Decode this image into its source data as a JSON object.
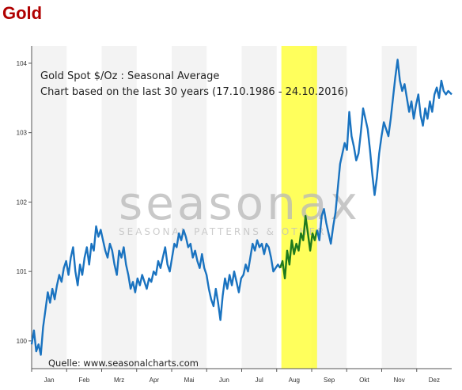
{
  "header": {
    "title": "Gold"
  },
  "colors": {
    "title": "#b00000",
    "line": "#1a73c0",
    "highlight_line": "#1e7a1e",
    "highlight_band": "#ffff33",
    "band_alt": "#f3f3f3"
  },
  "chart_data": {
    "type": "line",
    "title": "Gold Spot   $/Oz : Seasonal Average",
    "subtitle": "Chart based on the last 30 years (17.10.1986 - 24.10.2016)",
    "source": "Quelle: www.seasonalcharts.com",
    "watermark": "seasonax",
    "watermark_sub": "SEASONAL PATTERNS & OTHER",
    "months": [
      "Jan",
      "Feb",
      "Mrz",
      "Apr",
      "Mai",
      "Jun",
      "Jul",
      "Aug",
      "Sep",
      "Okt",
      "Nov",
      "Dez"
    ],
    "y_ticks": [
      100,
      101,
      102,
      103,
      104
    ],
    "ylim": [
      99.6,
      104.25
    ],
    "xlim": [
      0,
      365
    ],
    "highlight_range": [
      217,
      248
    ],
    "grid": "alternating month bands",
    "series": [
      {
        "values": [
          [
            0,
            99.95
          ],
          [
            2,
            100.15
          ],
          [
            4,
            99.85
          ],
          [
            6,
            99.95
          ],
          [
            8,
            99.8
          ],
          [
            10,
            100.2
          ],
          [
            12,
            100.45
          ],
          [
            14,
            100.7
          ],
          [
            16,
            100.55
          ],
          [
            18,
            100.75
          ],
          [
            20,
            100.6
          ],
          [
            22,
            100.8
          ],
          [
            24,
            100.95
          ],
          [
            26,
            100.85
          ],
          [
            28,
            101.05
          ],
          [
            30,
            101.15
          ],
          [
            32,
            100.95
          ],
          [
            34,
            101.2
          ],
          [
            36,
            101.35
          ],
          [
            38,
            101.0
          ],
          [
            40,
            100.8
          ],
          [
            42,
            101.1
          ],
          [
            44,
            100.95
          ],
          [
            46,
            101.2
          ],
          [
            48,
            101.35
          ],
          [
            50,
            101.1
          ],
          [
            52,
            101.4
          ],
          [
            54,
            101.3
          ],
          [
            56,
            101.65
          ],
          [
            58,
            101.5
          ],
          [
            60,
            101.6
          ],
          [
            62,
            101.45
          ],
          [
            64,
            101.3
          ],
          [
            66,
            101.2
          ],
          [
            68,
            101.4
          ],
          [
            70,
            101.3
          ],
          [
            72,
            101.1
          ],
          [
            74,
            100.95
          ],
          [
            76,
            101.3
          ],
          [
            78,
            101.2
          ],
          [
            80,
            101.35
          ],
          [
            82,
            101.1
          ],
          [
            84,
            100.95
          ],
          [
            86,
            100.75
          ],
          [
            88,
            100.85
          ],
          [
            90,
            100.7
          ],
          [
            92,
            100.9
          ],
          [
            94,
            100.8
          ],
          [
            96,
            100.95
          ],
          [
            98,
            100.85
          ],
          [
            100,
            100.75
          ],
          [
            102,
            100.9
          ],
          [
            104,
            100.85
          ],
          [
            106,
            101.0
          ],
          [
            108,
            100.95
          ],
          [
            110,
            101.15
          ],
          [
            112,
            101.05
          ],
          [
            114,
            101.2
          ],
          [
            116,
            101.35
          ],
          [
            118,
            101.1
          ],
          [
            120,
            101.0
          ],
          [
            122,
            101.2
          ],
          [
            124,
            101.4
          ],
          [
            126,
            101.35
          ],
          [
            128,
            101.55
          ],
          [
            130,
            101.45
          ],
          [
            132,
            101.6
          ],
          [
            134,
            101.5
          ],
          [
            136,
            101.35
          ],
          [
            138,
            101.4
          ],
          [
            140,
            101.2
          ],
          [
            142,
            101.3
          ],
          [
            144,
            101.15
          ],
          [
            146,
            101.05
          ],
          [
            148,
            101.25
          ],
          [
            150,
            101.05
          ],
          [
            152,
            100.95
          ],
          [
            154,
            100.75
          ],
          [
            156,
            100.6
          ],
          [
            158,
            100.5
          ],
          [
            160,
            100.75
          ],
          [
            162,
            100.55
          ],
          [
            164,
            100.3
          ],
          [
            166,
            100.65
          ],
          [
            168,
            100.9
          ],
          [
            170,
            100.75
          ],
          [
            172,
            100.95
          ],
          [
            174,
            100.8
          ],
          [
            176,
            101.0
          ],
          [
            178,
            100.85
          ],
          [
            180,
            100.7
          ],
          [
            182,
            100.9
          ],
          [
            184,
            100.95
          ],
          [
            186,
            101.1
          ],
          [
            188,
            101.0
          ],
          [
            190,
            101.2
          ],
          [
            192,
            101.4
          ],
          [
            194,
            101.3
          ],
          [
            196,
            101.45
          ],
          [
            198,
            101.35
          ],
          [
            200,
            101.4
          ],
          [
            202,
            101.25
          ],
          [
            204,
            101.4
          ],
          [
            206,
            101.35
          ],
          [
            208,
            101.2
          ],
          [
            210,
            101.0
          ],
          [
            212,
            101.05
          ],
          [
            214,
            101.1
          ],
          [
            216,
            101.05
          ]
        ]
      },
      {
        "values": [
          [
            216,
            101.05
          ],
          [
            218,
            101.15
          ],
          [
            220,
            100.9
          ],
          [
            222,
            101.3
          ],
          [
            224,
            101.1
          ],
          [
            226,
            101.45
          ],
          [
            228,
            101.25
          ],
          [
            230,
            101.4
          ],
          [
            232,
            101.3
          ],
          [
            234,
            101.55
          ],
          [
            236,
            101.45
          ],
          [
            238,
            101.8
          ],
          [
            240,
            101.55
          ],
          [
            242,
            101.3
          ],
          [
            244,
            101.55
          ],
          [
            246,
            101.45
          ],
          [
            248,
            101.6
          ]
        ]
      },
      {
        "values": [
          [
            248,
            101.6
          ],
          [
            250,
            101.45
          ],
          [
            252,
            101.8
          ],
          [
            254,
            101.9
          ],
          [
            256,
            101.7
          ],
          [
            258,
            101.55
          ],
          [
            260,
            101.4
          ],
          [
            262,
            101.65
          ],
          [
            264,
            101.85
          ],
          [
            266,
            102.2
          ],
          [
            268,
            102.55
          ],
          [
            270,
            102.7
          ],
          [
            272,
            102.85
          ],
          [
            274,
            102.75
          ],
          [
            276,
            103.3
          ],
          [
            278,
            102.95
          ],
          [
            280,
            102.8
          ],
          [
            282,
            102.6
          ],
          [
            284,
            102.7
          ],
          [
            286,
            103.0
          ],
          [
            288,
            103.35
          ],
          [
            290,
            103.2
          ],
          [
            292,
            103.05
          ],
          [
            294,
            102.75
          ],
          [
            296,
            102.4
          ],
          [
            298,
            102.1
          ],
          [
            300,
            102.35
          ],
          [
            302,
            102.7
          ],
          [
            304,
            102.95
          ],
          [
            306,
            103.15
          ],
          [
            308,
            103.05
          ],
          [
            310,
            102.95
          ],
          [
            312,
            103.2
          ],
          [
            314,
            103.5
          ],
          [
            316,
            103.8
          ],
          [
            318,
            104.05
          ],
          [
            320,
            103.75
          ],
          [
            322,
            103.6
          ],
          [
            324,
            103.7
          ],
          [
            326,
            103.5
          ],
          [
            328,
            103.3
          ],
          [
            330,
            103.45
          ],
          [
            332,
            103.2
          ],
          [
            334,
            103.4
          ],
          [
            336,
            103.55
          ],
          [
            338,
            103.25
          ],
          [
            340,
            103.1
          ],
          [
            342,
            103.35
          ],
          [
            344,
            103.2
          ],
          [
            346,
            103.45
          ],
          [
            348,
            103.3
          ],
          [
            350,
            103.55
          ],
          [
            352,
            103.65
          ],
          [
            354,
            103.5
          ],
          [
            356,
            103.75
          ],
          [
            358,
            103.6
          ],
          [
            360,
            103.55
          ],
          [
            362,
            103.6
          ],
          [
            365,
            103.55
          ]
        ]
      }
    ]
  }
}
